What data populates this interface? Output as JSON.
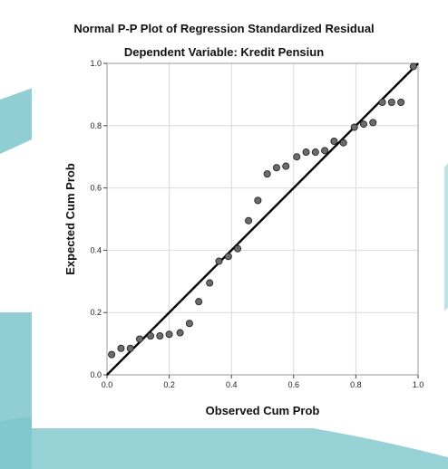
{
  "chart_data": {
    "type": "scatter",
    "title": "Normal P-P Plot of Regression Standardized Residual",
    "subtitle": "Dependent Variable: Kredit Pensiun",
    "xlabel": "Observed Cum Prob",
    "ylabel": "Expected Cum Prob",
    "xlim": [
      0,
      1
    ],
    "ylim": [
      0,
      1
    ],
    "x_ticks": [
      "0.0",
      "0.2",
      "0.4",
      "0.6",
      "0.8",
      "1.0"
    ],
    "y_ticks": [
      "0.0",
      "0.2",
      "0.4",
      "0.6",
      "0.8",
      "1.0"
    ],
    "grid": true,
    "reference_line": [
      [
        0,
        0
      ],
      [
        1,
        1
      ]
    ],
    "points": [
      [
        0.015,
        0.065
      ],
      [
        0.045,
        0.085
      ],
      [
        0.075,
        0.085
      ],
      [
        0.105,
        0.115
      ],
      [
        0.14,
        0.125
      ],
      [
        0.17,
        0.125
      ],
      [
        0.2,
        0.13
      ],
      [
        0.235,
        0.135
      ],
      [
        0.265,
        0.165
      ],
      [
        0.295,
        0.235
      ],
      [
        0.33,
        0.295
      ],
      [
        0.36,
        0.365
      ],
      [
        0.39,
        0.38
      ],
      [
        0.42,
        0.405
      ],
      [
        0.455,
        0.495
      ],
      [
        0.485,
        0.56
      ],
      [
        0.515,
        0.645
      ],
      [
        0.545,
        0.665
      ],
      [
        0.575,
        0.67
      ],
      [
        0.61,
        0.7
      ],
      [
        0.64,
        0.715
      ],
      [
        0.67,
        0.715
      ],
      [
        0.7,
        0.72
      ],
      [
        0.73,
        0.75
      ],
      [
        0.76,
        0.745
      ],
      [
        0.795,
        0.795
      ],
      [
        0.825,
        0.805
      ],
      [
        0.855,
        0.81
      ],
      [
        0.885,
        0.875
      ],
      [
        0.915,
        0.875
      ],
      [
        0.945,
        0.875
      ],
      [
        0.985,
        0.99
      ]
    ],
    "colors": {
      "point_fill": "#6b6b6b",
      "point_stroke": "#1a1a1a",
      "line": "#000000",
      "grid": "#d9d9d9",
      "frame": "#9a9a9a",
      "background_accent": "#7cc6cc"
    }
  }
}
